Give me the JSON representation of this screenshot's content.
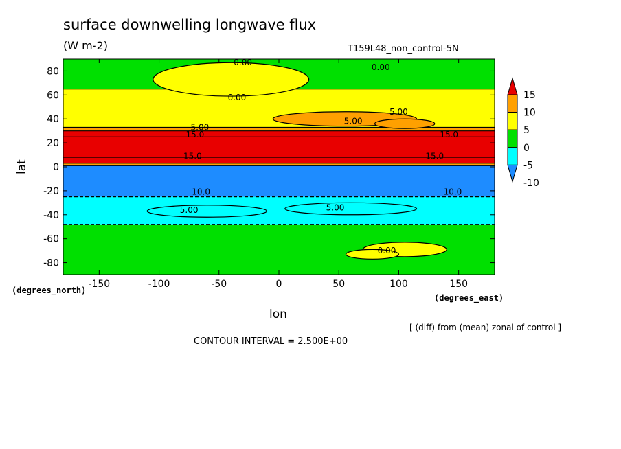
{
  "header": {
    "title": "surface downwelling longwave flux",
    "units": "(W m-2)",
    "run_label": "T159L48_non_control-5N"
  },
  "axes": {
    "x_unit_label": "(degrees_east)",
    "y_unit_label": "(degrees_north)",
    "xlabel": "lon",
    "ylabel": "lat"
  },
  "footer": {
    "note": "[ (diff) from (mean) zonal of control ]",
    "contour_interval": "CONTOUR INTERVAL = 2.500E+00"
  },
  "chart_data": {
    "type": "heatmap",
    "title": "surface downwelling longwave flux",
    "subtitle": "(W m-2)",
    "xlabel": "lon",
    "ylabel": "lat",
    "xlim": [
      -180,
      180
    ],
    "ylim": [
      -90,
      90
    ],
    "x_ticks": [
      -150,
      -100,
      -50,
      0,
      50,
      100,
      150
    ],
    "y_ticks": [
      80,
      60,
      40,
      20,
      0,
      -20,
      -40,
      -60,
      -80
    ],
    "x_tick_labels": [
      "-150",
      "-100",
      "-50",
      "0",
      "50",
      "100",
      "150"
    ],
    "y_tick_labels": [
      "80",
      "60",
      "40",
      "20",
      "0",
      "-20",
      "-40",
      "-60",
      "-80"
    ],
    "colorbar": {
      "levels": [
        -10,
        -5,
        0,
        5,
        10,
        15
      ],
      "labels": [
        "15",
        "10",
        "5",
        "0",
        "-5",
        "-10"
      ],
      "colors": [
        "#1e8cff",
        "#00ffff",
        "#00e000",
        "#ffff00",
        "#ffa000",
        "#e80000"
      ]
    },
    "zonal_bands": [
      {
        "lat_from": -90,
        "lat_to": -48,
        "value": -2.5
      },
      {
        "lat_from": -48,
        "lat_to": -25,
        "value": -7.5
      },
      {
        "lat_from": -25,
        "lat_to": 1,
        "value": -12.5
      },
      {
        "lat_from": 1,
        "lat_to": 3,
        "value": 7.5
      },
      {
        "lat_from": 3,
        "lat_to": 8,
        "value": 12.5
      },
      {
        "lat_from": 8,
        "lat_to": 25,
        "value": 17.5
      },
      {
        "lat_from": 25,
        "lat_to": 30,
        "value": 12.5
      },
      {
        "lat_from": 30,
        "lat_to": 33,
        "value": 7.5
      },
      {
        "lat_from": 33,
        "lat_to": 65,
        "value": 2.5
      },
      {
        "lat_from": 65,
        "lat_to": 90,
        "value": -2.5
      }
    ],
    "patches": [
      {
        "lon": 55,
        "lat": 40,
        "rlon": 60,
        "rlat": 6,
        "value": 7.5
      },
      {
        "lon": 105,
        "lat": 36,
        "rlon": 25,
        "rlat": 4,
        "value": 7.5
      },
      {
        "lon": -40,
        "lat": 73,
        "rlon": 65,
        "rlat": 14,
        "value": 2.5
      },
      {
        "lon": 105,
        "lat": -69,
        "rlon": 35,
        "rlat": 6,
        "value": 2.5
      },
      {
        "lon": 78,
        "lat": -73,
        "rlon": 22,
        "rlat": 4,
        "value": 2.5
      },
      {
        "lon": -60,
        "lat": -37,
        "rlon": 50,
        "rlat": 5,
        "value": -7.5
      },
      {
        "lon": 60,
        "lat": -35,
        "rlon": 55,
        "rlat": 5,
        "value": -7.5
      }
    ],
    "contour_labels": [
      {
        "text": "0.00",
        "lon": -30,
        "lat": 87
      },
      {
        "text": "0.00",
        "lon": 85,
        "lat": 83
      },
      {
        "text": "0.00",
        "lon": -35,
        "lat": 58
      },
      {
        "text": "5.00",
        "lon": 100,
        "lat": 46
      },
      {
        "text": "5.00",
        "lon": 62,
        "lat": 38
      },
      {
        "text": "5.00",
        "lon": -66,
        "lat": 33
      },
      {
        "text": "15.0",
        "lon": -70,
        "lat": 27
      },
      {
        "text": "15.0",
        "lon": 142,
        "lat": 27
      },
      {
        "text": "15.0",
        "lon": -72,
        "lat": 9
      },
      {
        "text": "15.0",
        "lon": 130,
        "lat": 9
      },
      {
        "text": "10.0",
        "lon": -65,
        "lat": -21
      },
      {
        "text": "10.0",
        "lon": 145,
        "lat": -21
      },
      {
        "text": "5.00",
        "lon": -75,
        "lat": -36
      },
      {
        "text": "5.00",
        "lon": 47,
        "lat": -34
      },
      {
        "text": "0.00",
        "lon": 90,
        "lat": -70
      }
    ]
  }
}
